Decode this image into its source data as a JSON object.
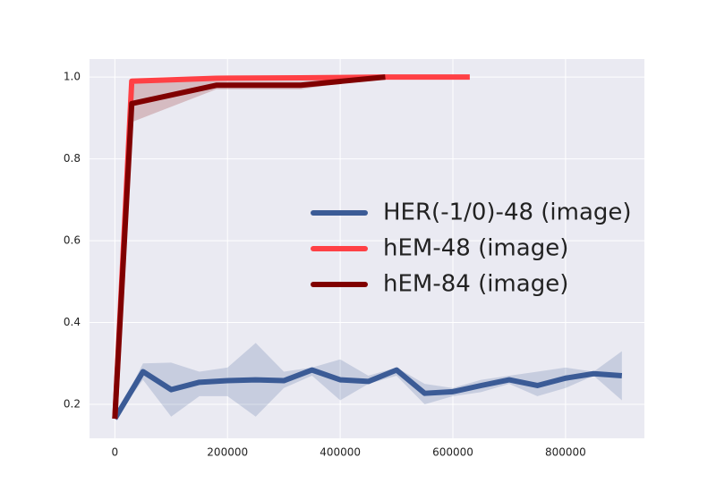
{
  "chart_data": {
    "type": "line",
    "xlim": [
      -45000,
      940000
    ],
    "xticks": [
      0,
      200000,
      400000,
      600000,
      800000
    ],
    "ylim": [
      0.117,
      1.044
    ],
    "yticks": [
      0.2,
      0.4,
      0.6,
      0.8,
      {
        "value": 1,
        "label": "1.0"
      }
    ],
    "grid": true,
    "legend": "center right",
    "series": [
      {
        "name": "HER(-1/0)-48 (image)",
        "color": "#3b5b96",
        "x": [
          0,
          50000,
          100000,
          150000,
          200000,
          250000,
          300000,
          350000,
          400000,
          450000,
          500000,
          550000,
          600000,
          650000,
          700000,
          750000,
          800000,
          850000,
          900000
        ],
        "values": [
          0.165,
          0.28,
          0.236,
          0.254,
          0.258,
          0.26,
          0.258,
          0.284,
          0.26,
          0.256,
          0.284,
          0.227,
          0.231,
          0.246,
          0.26,
          0.246,
          0.264,
          0.275,
          0.27
        ],
        "band": {
          "upper": [
            0.165,
            0.3,
            0.302,
            0.28,
            0.29,
            0.35,
            0.28,
            0.29,
            0.31,
            0.27,
            0.29,
            0.25,
            0.24,
            0.26,
            0.27,
            0.28,
            0.29,
            0.28,
            0.33
          ],
          "lower": [
            0.165,
            0.26,
            0.17,
            0.22,
            0.22,
            0.17,
            0.24,
            0.27,
            0.21,
            0.25,
            0.27,
            0.2,
            0.22,
            0.23,
            0.25,
            0.22,
            0.24,
            0.27,
            0.21
          ]
        }
      },
      {
        "name": "hEM-48 (image)",
        "color": "#ff4045",
        "x": [
          0,
          30000,
          180000,
          330000,
          480000,
          630000
        ],
        "values": [
          0.165,
          0.99,
          0.997,
          0.998,
          1.0,
          1.0
        ]
      },
      {
        "name": "hEM-84 (image)",
        "color": "#800000",
        "x": [
          0,
          30000,
          180000,
          330000,
          480000
        ],
        "values": [
          0.165,
          0.935,
          0.98,
          0.98,
          1.0
        ],
        "band": {
          "upper": [
            0.165,
            0.99,
            0.99,
            0.99,
            1.0
          ],
          "lower": [
            0.165,
            0.89,
            0.97,
            0.97,
            1.0
          ]
        }
      }
    ]
  }
}
